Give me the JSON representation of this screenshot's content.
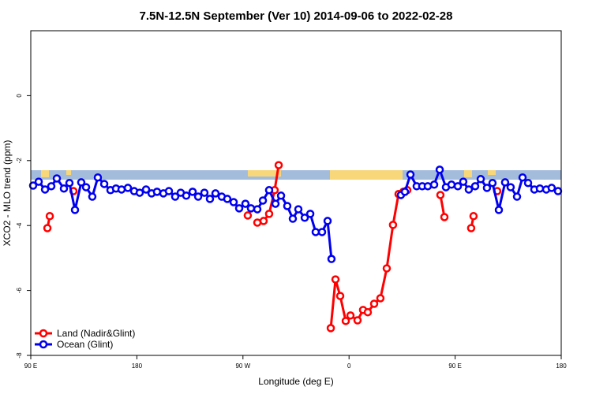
{
  "chart_data": {
    "type": "line",
    "title": "7.5N-12.5N September (Ver 10)   2014-09-06 to 2022-02-28",
    "xlabel": "Longitude (deg E)",
    "ylabel": "XCO2 - MLO trend (ppm)",
    "xlim": [
      90,
      540
    ],
    "ylim": [
      -8,
      2
    ],
    "xticks": [
      {
        "value": 90,
        "label": "90 E"
      },
      180,
      {
        "value": 270,
        "label": "90 W"
      },
      {
        "value": 360,
        "label": "0"
      },
      {
        "value": 450,
        "label": "90 E"
      },
      {
        "value": 540,
        "label": "180"
      }
    ],
    "yticks": [
      -8,
      -6,
      -4,
      -2,
      0
    ],
    "legend": "bottom-left",
    "series": [
      {
        "name": "Land (Nadir&Glint)",
        "color": "#ff0000",
        "x": [
          104.1,
          106.1,
          null,
          126.2,
          null,
          274.1,
          null,
          282.2,
          287.5,
          292.2,
          296.9,
          300.3,
          null,
          344.5,
          348.5,
          352.5,
          357.2,
          361.2,
          367.2,
          371.9,
          375.9,
          381.3,
          386.6,
          392.0,
          397.3,
          402.0,
          406.1,
          409.4,
          null,
          437.5,
          440.9,
          null,
          463.6,
          465.6,
          null,
          485.7
        ],
        "values": [
          -4.08,
          -3.71,
          null,
          -2.94,
          null,
          -3.69,
          null,
          -3.91,
          -3.86,
          -3.64,
          -2.91,
          -2.14,
          null,
          -7.16,
          -5.66,
          -6.17,
          -6.94,
          -6.77,
          -6.92,
          -6.6,
          -6.67,
          -6.41,
          -6.24,
          -5.32,
          -3.98,
          -3.03,
          -2.96,
          -2.91,
          null,
          -3.06,
          -3.74,
          null,
          -4.08,
          -3.71,
          null,
          -2.94
        ]
      },
      {
        "name": "Ocean (Glint)",
        "color": "#0000ee",
        "x": [
          92.0,
          96.7,
          102.1,
          107.4,
          112.1,
          118.1,
          122.8,
          127.5,
          132.8,
          136.9,
          142.2,
          146.9,
          152.3,
          157.6,
          162.3,
          167.0,
          172.4,
          177.7,
          182.4,
          187.8,
          192.5,
          197.1,
          202.5,
          207.2,
          212.5,
          217.2,
          221.9,
          227.3,
          232.0,
          237.3,
          242.0,
          246.7,
          252.0,
          256.7,
          262.1,
          266.8,
          272.1,
          276.8,
          282.2,
          286.9,
          292.2,
          297.6,
          302.3,
          307.6,
          312.3,
          317.0,
          322.4,
          327.1,
          331.7,
          337.1,
          341.8,
          345.1,
          null,
          404.0,
          407.4,
          412.1,
          417.4,
          422.1,
          426.8,
          432.2,
          436.9,
          442.2,
          446.9,
          452.3,
          456.9,
          461.6,
          467.0,
          471.7,
          477.0,
          481.7,
          487.1,
          492.4,
          497.1,
          502.5,
          507.2,
          511.9,
          517.2,
          521.9,
          527.3,
          531.9,
          537.3
        ],
        "values": [
          -2.77,
          -2.65,
          -2.89,
          -2.79,
          -2.55,
          -2.86,
          -2.69,
          -3.52,
          -2.67,
          -2.82,
          -3.11,
          -2.52,
          -2.72,
          -2.91,
          -2.86,
          -2.89,
          -2.84,
          -2.94,
          -2.99,
          -2.89,
          -3.01,
          -2.96,
          -3.01,
          -2.94,
          -3.11,
          -2.99,
          -3.08,
          -2.96,
          -3.11,
          -2.99,
          -3.18,
          -3.01,
          -3.11,
          -3.18,
          -3.28,
          -3.47,
          -3.33,
          -3.47,
          -3.5,
          -3.23,
          -2.91,
          -3.33,
          -3.08,
          -3.4,
          -3.79,
          -3.5,
          -3.76,
          -3.64,
          -4.2,
          -4.2,
          -3.86,
          -5.03,
          null,
          -3.06,
          -2.96,
          -2.43,
          -2.79,
          -2.79,
          -2.79,
          -2.74,
          -2.28,
          -2.82,
          -2.74,
          -2.79,
          -2.65,
          -2.89,
          -2.79,
          -2.57,
          -2.84,
          -2.69,
          -3.52,
          -2.67,
          -2.82,
          -3.11,
          -2.52,
          -2.69,
          -2.89,
          -2.86,
          -2.89,
          -2.84,
          -2.94
        ]
      }
    ]
  }
}
